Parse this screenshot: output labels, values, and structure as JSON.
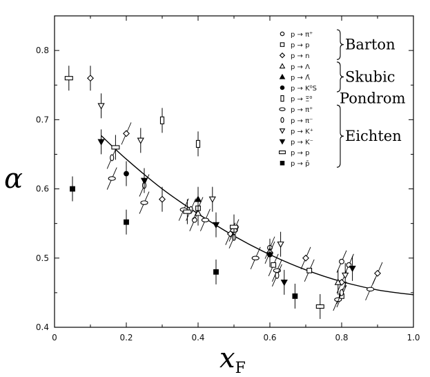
{
  "chart_data": {
    "type": "scatter",
    "xlabel": {
      "symbol": "x",
      "subscript": "F"
    },
    "ylabel": "α",
    "xlim": [
      0.0,
      1.0
    ],
    "ylim": [
      0.4,
      0.85
    ],
    "xticks": [
      "0",
      "0.2",
      "0.4",
      "0.6",
      "0.8",
      "1.0"
    ],
    "yticks": [
      "0.4",
      "0.5",
      "0.6",
      "0.7",
      "0.8"
    ],
    "grid": false,
    "legend_position": "top-right",
    "groups": [
      {
        "label": "Barton",
        "members": [
          0,
          1,
          2
        ]
      },
      {
        "label": "Skubic",
        "members": [
          3,
          4,
          5
        ]
      },
      {
        "label": "Pondrom",
        "members": [
          6
        ]
      },
      {
        "label": "Eichten",
        "members": [
          7,
          8,
          9,
          10,
          11,
          12
        ]
      }
    ],
    "series": [
      {
        "name": "p → π⁺",
        "marker": "circle-open",
        "points": [
          [
            0.39,
            0.555
          ],
          [
            0.6,
            0.515
          ],
          [
            0.8,
            0.495
          ],
          [
            0.82,
            0.49
          ]
        ]
      },
      {
        "name": "p → p",
        "marker": "square-open",
        "points": [
          [
            0.4,
            0.572
          ],
          [
            0.61,
            0.49
          ],
          [
            0.71,
            0.482
          ],
          [
            0.8,
            0.445
          ]
        ]
      },
      {
        "name": "p → n",
        "marker": "diamond-open",
        "points": [
          [
            0.1,
            0.76
          ],
          [
            0.2,
            0.68
          ],
          [
            0.3,
            0.585
          ],
          [
            0.49,
            0.535
          ],
          [
            0.6,
            0.508
          ],
          [
            0.7,
            0.5
          ],
          [
            0.8,
            0.465
          ],
          [
            0.9,
            0.478
          ]
        ]
      },
      {
        "name": "p → Λ",
        "marker": "triangle-up-open",
        "points": [
          [
            0.4,
            0.565
          ],
          [
            0.6,
            0.51
          ],
          [
            0.79,
            0.465
          ]
        ]
      },
      {
        "name": "p → Λ̄",
        "marker": "triangle-up-filled",
        "points": [
          [
            0.4,
            0.585
          ]
        ]
      },
      {
        "name": "p → K⁰S",
        "marker": "circle-filled",
        "points": [
          [
            0.2,
            0.622
          ],
          [
            0.6,
            0.505
          ]
        ]
      },
      {
        "name": "p → Ξ⁰",
        "marker": "rect-tall-open",
        "points": [
          [
            0.3,
            0.699
          ],
          [
            0.4,
            0.665
          ]
        ]
      },
      {
        "name": "p → π⁺",
        "marker": "ellipse-wide-open",
        "points": [
          [
            0.16,
            0.615
          ],
          [
            0.25,
            0.58
          ],
          [
            0.36,
            0.57
          ],
          [
            0.42,
            0.555
          ],
          [
            0.5,
            0.54
          ],
          [
            0.56,
            0.5
          ],
          [
            0.62,
            0.482
          ],
          [
            0.79,
            0.44
          ],
          [
            0.88,
            0.455
          ]
        ]
      },
      {
        "name": "p → π⁻",
        "marker": "ellipse-tall-open",
        "points": [
          [
            0.16,
            0.645
          ],
          [
            0.25,
            0.605
          ],
          [
            0.38,
            0.57
          ],
          [
            0.5,
            0.53
          ],
          [
            0.62,
            0.475
          ],
          [
            0.8,
            0.45
          ]
        ]
      },
      {
        "name": "p → K⁺",
        "marker": "triangle-down-open",
        "points": [
          [
            0.13,
            0.72
          ],
          [
            0.24,
            0.67
          ],
          [
            0.44,
            0.585
          ],
          [
            0.63,
            0.52
          ],
          [
            0.81,
            0.475
          ]
        ]
      },
      {
        "name": "p → K⁻",
        "marker": "triangle-down-filled",
        "points": [
          [
            0.13,
            0.668
          ],
          [
            0.25,
            0.612
          ],
          [
            0.45,
            0.548
          ],
          [
            0.64,
            0.465
          ],
          [
            0.83,
            0.485
          ]
        ]
      },
      {
        "name": "p → p",
        "marker": "rect-wide-open",
        "points": [
          [
            0.04,
            0.76
          ],
          [
            0.17,
            0.66
          ],
          [
            0.37,
            0.567
          ],
          [
            0.5,
            0.545
          ],
          [
            0.74,
            0.43
          ]
        ]
      },
      {
        "name": "p → p̄",
        "marker": "square-filled",
        "points": [
          [
            0.05,
            0.6
          ],
          [
            0.2,
            0.552
          ],
          [
            0.45,
            0.48
          ],
          [
            0.67,
            0.445
          ]
        ]
      }
    ],
    "fit_curve": {
      "x": [
        0.13,
        0.2,
        0.3,
        0.4,
        0.5,
        0.6,
        0.7,
        0.8,
        0.9,
        1.0
      ],
      "y": [
        0.677,
        0.643,
        0.6,
        0.564,
        0.532,
        0.505,
        0.483,
        0.466,
        0.454,
        0.447
      ]
    }
  }
}
